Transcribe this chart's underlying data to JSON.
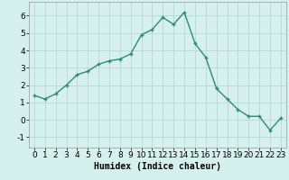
{
  "x": [
    0,
    1,
    2,
    3,
    4,
    5,
    6,
    7,
    8,
    9,
    10,
    11,
    12,
    13,
    14,
    15,
    16,
    17,
    18,
    19,
    20,
    21,
    22,
    23
  ],
  "y": [
    1.4,
    1.2,
    1.5,
    2.0,
    2.6,
    2.8,
    3.2,
    3.4,
    3.5,
    3.8,
    4.9,
    5.2,
    5.9,
    5.5,
    6.2,
    4.4,
    3.6,
    1.8,
    1.2,
    0.6,
    0.2,
    0.2,
    -0.6,
    0.1
  ],
  "line_color": "#2e8b74",
  "marker": "+",
  "background_color": "#d6f0ee",
  "grid_color": "#b8d8d4",
  "xlabel": "Humidex (Indice chaleur)",
  "xlim": [
    -0.5,
    23.5
  ],
  "ylim": [
    -1.6,
    6.8
  ],
  "yticks": [
    -1,
    0,
    1,
    2,
    3,
    4,
    5,
    6
  ],
  "xticks": [
    0,
    1,
    2,
    3,
    4,
    5,
    6,
    7,
    8,
    9,
    10,
    11,
    12,
    13,
    14,
    15,
    16,
    17,
    18,
    19,
    20,
    21,
    22,
    23
  ],
  "xlabel_fontsize": 7,
  "tick_fontsize": 6.5,
  "linewidth": 1.0,
  "markersize": 3.5,
  "markeredgewidth": 1.0
}
